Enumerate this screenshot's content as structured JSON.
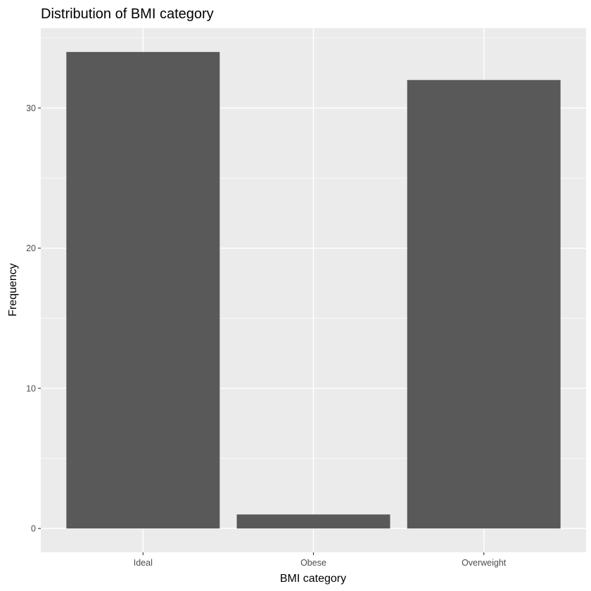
{
  "chart_data": {
    "type": "bar",
    "title": "Distribution of BMI category",
    "xlabel": "BMI category",
    "ylabel": "Frequency",
    "categories": [
      "Ideal",
      "Obese",
      "Overweight"
    ],
    "values": [
      34,
      1,
      32
    ],
    "ylim": [
      -1.7,
      35.7
    ],
    "yticks": [
      0,
      10,
      20,
      30
    ],
    "grid": true,
    "colors": {
      "bar": "#595959",
      "panel": "#ebebeb",
      "grid": "#ffffff"
    }
  }
}
